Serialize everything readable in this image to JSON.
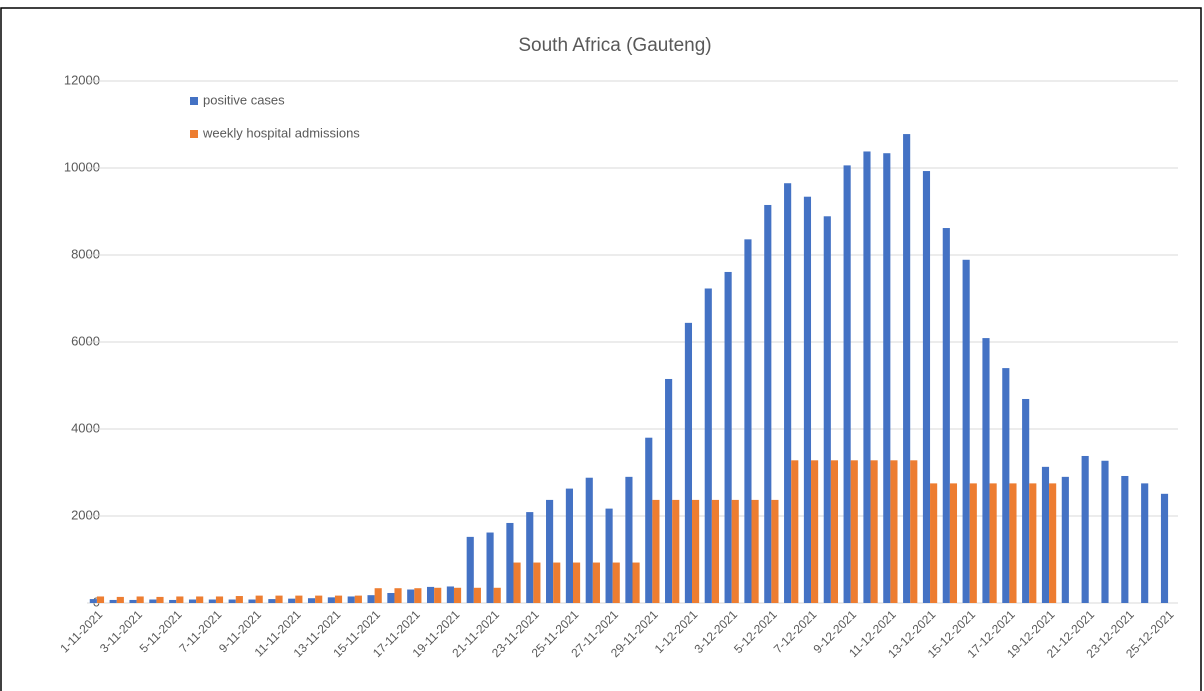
{
  "chart_data": {
    "type": "bar",
    "title": "South Africa (Gauteng)",
    "categories": [
      "1-11-2021",
      null,
      "3-11-2021",
      null,
      "5-11-2021",
      null,
      "7-11-2021",
      null,
      "9-11-2021",
      null,
      "11-11-2021",
      null,
      "13-11-2021",
      null,
      "15-11-2021",
      null,
      "17-11-2021",
      null,
      "19-11-2021",
      null,
      "21-11-2021",
      null,
      "23-11-2021",
      null,
      "25-11-2021",
      null,
      "27-11-2021",
      null,
      "29-11-2021",
      null,
      "1-12-2021",
      null,
      "3-12-2021",
      null,
      "5-12-2021",
      null,
      "7-12-2021",
      null,
      "9-12-2021",
      null,
      "11-12-2021",
      null,
      "13-12-2021",
      null,
      "15-12-2021",
      null,
      "17-12-2021",
      null,
      "19-12-2021",
      null,
      "21-12-2021",
      null,
      "23-12-2021",
      null,
      "25-12-2021"
    ],
    "series": [
      {
        "name": "positive cases",
        "color": "#4472c4",
        "values": [
          90,
          70,
          70,
          80,
          70,
          80,
          80,
          80,
          80,
          90,
          100,
          110,
          130,
          150,
          180,
          230,
          310,
          370,
          380,
          1520,
          1620,
          1840,
          2090,
          2370,
          2630,
          2880,
          2170,
          2900,
          3800,
          5150,
          6440,
          7230,
          7610,
          8360,
          9150,
          9650,
          9340,
          8890,
          10060,
          10380,
          10340,
          10780,
          9930,
          8620,
          7890,
          6090,
          5400,
          4690,
          3130,
          2900,
          3380,
          3270,
          2920,
          2750,
          2510
        ]
      },
      {
        "name": "weekly hospital admissions",
        "color": "#ed7d31",
        "values": [
          150,
          140,
          150,
          140,
          150,
          150,
          150,
          160,
          170,
          170,
          170,
          170,
          170,
          170,
          340,
          340,
          340,
          350,
          350,
          350,
          350,
          930,
          930,
          930,
          930,
          930,
          930,
          930,
          2370,
          2370,
          2370,
          2370,
          2370,
          2370,
          2370,
          3280,
          3280,
          3280,
          3280,
          3280,
          3280,
          3280,
          2750,
          2750,
          2750,
          2750,
          2750,
          2750,
          2750,
          null,
          null,
          null,
          null,
          null,
          null
        ]
      }
    ],
    "ylim": [
      0,
      12000
    ],
    "yticks": [
      0,
      2000,
      4000,
      6000,
      8000,
      10000,
      12000
    ],
    "grid": true,
    "legend": "top-left"
  }
}
